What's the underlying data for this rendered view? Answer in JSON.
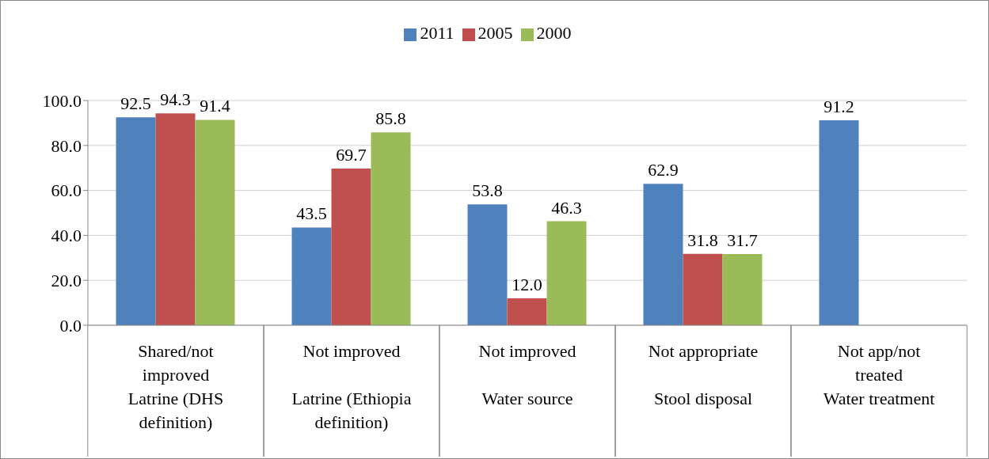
{
  "chart_data": {
    "type": "bar",
    "categories": [
      "Shared/not improved\nLatrine (DHS definition)",
      "Not improved\nLatrine (Ethiopia definition)",
      "Not improved\nWater source",
      "Not appropriate\nStool disposal",
      "Not app/not treated\nWater treatment"
    ],
    "series": [
      {
        "name": "2011",
        "color": "#4f81bd",
        "values": [
          92.5,
          43.5,
          53.8,
          62.9,
          91.2
        ],
        "value_labels": [
          "92.5",
          "43.5",
          "53.8",
          "62.9",
          "91.2"
        ]
      },
      {
        "name": "2005",
        "color": "#c0504d",
        "values": [
          94.3,
          69.7,
          12.0,
          31.8,
          null
        ],
        "value_labels": [
          "94.3",
          "69.7",
          "12.0",
          "31.8",
          null
        ]
      },
      {
        "name": "2000",
        "color": "#9bbb59",
        "values": [
          91.4,
          85.8,
          46.3,
          31.7,
          null
        ],
        "value_labels": [
          "91.4",
          "85.8",
          "46.3",
          "31.7",
          null
        ]
      }
    ],
    "ylim": [
      0,
      100
    ],
    "yticks": [
      {
        "value": 0,
        "label": "0.0"
      },
      {
        "value": 20,
        "label": "20.0"
      },
      {
        "value": 40,
        "label": "40.0"
      },
      {
        "value": 60,
        "label": "60.0"
      },
      {
        "value": 80,
        "label": "80.0"
      },
      {
        "value": 100,
        "label": "100.0"
      }
    ],
    "grid": "y",
    "legend": "top"
  }
}
